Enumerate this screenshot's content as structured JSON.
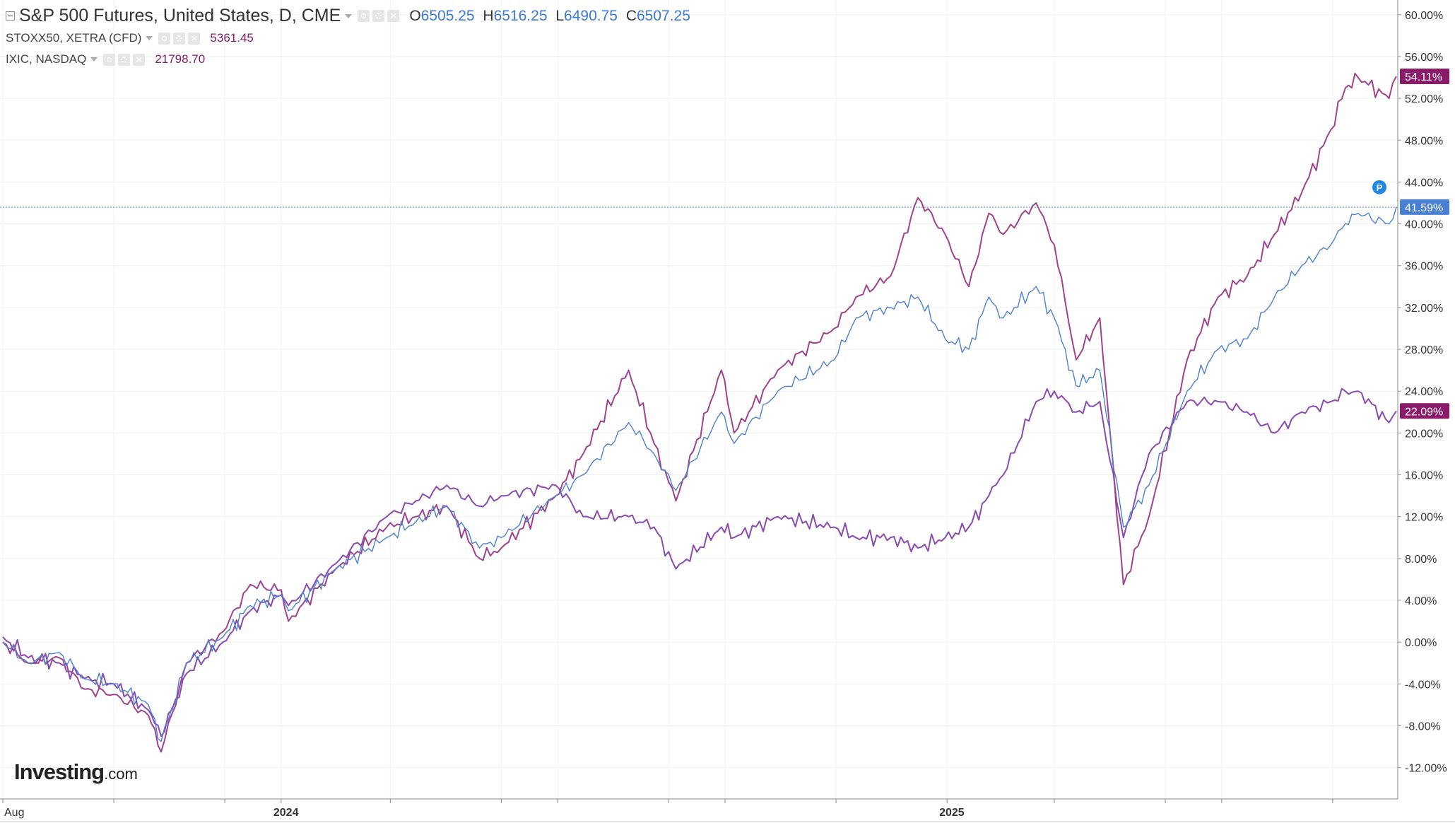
{
  "header": {
    "title": "S&P 500 Futures, United States, D, CME",
    "ohlc": [
      {
        "key": "O",
        "value": "6505.25"
      },
      {
        "key": "H",
        "value": "6516.25"
      },
      {
        "key": "L",
        "value": "6490.75"
      },
      {
        "key": "C",
        "value": "6507.25"
      }
    ]
  },
  "compare": [
    {
      "label": "STOXX50, XETRA (CFD)",
      "value": "5361.45",
      "color": "#8b1a6b"
    },
    {
      "label": "IXIC, NASDAQ",
      "value": "21798.70",
      "color": "#8b1a6b"
    }
  ],
  "logo": {
    "brand": "Investing",
    "suffix": ".com"
  },
  "colors": {
    "sp500": "#4a80d4",
    "ixic": "#a0438f",
    "stoxx": "#8a4ab0",
    "badge_purple": "#8b1a6b",
    "badge_blue": "#4a80d4"
  },
  "chart_data": {
    "type": "line",
    "yaxis_unit": "%",
    "ylim": [
      -15,
      61
    ],
    "yticks": [
      -12,
      -8,
      -4,
      0,
      4,
      8,
      12,
      16,
      20,
      24,
      28,
      32,
      36,
      40,
      44,
      48,
      52,
      56,
      60
    ],
    "ytick_labels": [
      "-12.00%",
      "-8.00%",
      "-4.00%",
      "0.00%",
      "4.00%",
      "8.00%",
      "12.00%",
      "16.00%",
      "20.00%",
      "24.00%",
      "28.00%",
      "32.00%",
      "36.00%",
      "40.00%",
      "44.00%",
      "48.00%",
      "52.00%",
      "56.00%",
      "60.00%"
    ],
    "xlim": [
      "2023-08-01",
      "2025-09-05"
    ],
    "xticks": [
      {
        "date": "2023-08-01",
        "label": "Aug"
      },
      {
        "date": "2024-01-01",
        "label": "2024"
      },
      {
        "date": "2025-01-01",
        "label": "2025"
      }
    ],
    "x_minor_ticks": [
      "2023-10-01",
      "2023-12-01",
      "2024-03-01",
      "2024-05-01",
      "2024-06-01",
      "2024-08-01",
      "2024-09-01",
      "2024-11-01",
      "2025-03-01",
      "2025-05-01",
      "2025-06-01",
      "2025-08-01"
    ],
    "series": [
      {
        "name": "IXIC, NASDAQ",
        "key": "ixic",
        "last_label": "54.11%",
        "points": [
          [
            "2023-08-01",
            0
          ],
          [
            "2023-08-15",
            -2
          ],
          [
            "2023-09-01",
            -1.5
          ],
          [
            "2023-09-15",
            -4.5
          ],
          [
            "2023-10-01",
            -5
          ],
          [
            "2023-10-20",
            -7
          ],
          [
            "2023-10-27",
            -10.5
          ],
          [
            "2023-11-10",
            -2
          ],
          [
            "2023-11-30",
            1
          ],
          [
            "2023-12-15",
            5.5
          ],
          [
            "2024-01-01",
            5
          ],
          [
            "2024-01-05",
            2
          ],
          [
            "2024-01-31",
            7
          ],
          [
            "2024-02-28",
            11
          ],
          [
            "2024-03-15",
            12
          ],
          [
            "2024-04-01",
            13
          ],
          [
            "2024-04-19",
            8
          ],
          [
            "2024-05-01",
            9
          ],
          [
            "2024-05-31",
            14
          ],
          [
            "2024-06-15",
            18
          ],
          [
            "2024-07-10",
            26
          ],
          [
            "2024-07-24",
            19
          ],
          [
            "2024-08-05",
            13.5
          ],
          [
            "2024-08-30",
            26
          ],
          [
            "2024-09-06",
            20
          ],
          [
            "2024-09-30",
            26
          ],
          [
            "2024-10-31",
            30
          ],
          [
            "2024-11-12",
            33
          ],
          [
            "2024-12-01",
            35
          ],
          [
            "2024-12-16",
            42.5
          ],
          [
            "2024-12-31",
            39
          ],
          [
            "2025-01-13",
            34
          ],
          [
            "2025-01-24",
            41
          ],
          [
            "2025-02-01",
            39
          ],
          [
            "2025-02-19",
            42
          ],
          [
            "2025-03-01",
            38
          ],
          [
            "2025-03-13",
            27
          ],
          [
            "2025-03-26",
            31
          ],
          [
            "2025-04-08",
            5.5
          ],
          [
            "2025-04-22",
            12
          ],
          [
            "2025-05-13",
            27
          ],
          [
            "2025-05-30",
            33
          ],
          [
            "2025-06-15",
            35
          ],
          [
            "2025-06-30",
            39
          ],
          [
            "2025-07-15",
            43
          ],
          [
            "2025-07-31",
            49
          ],
          [
            "2025-08-08",
            53
          ],
          [
            "2025-08-15",
            54
          ],
          [
            "2025-09-01",
            52
          ],
          [
            "2025-09-05",
            54.1
          ]
        ]
      },
      {
        "name": "S&P 500 Futures, United States, D, CME",
        "key": "sp500",
        "last_label": "41.59%",
        "points": [
          [
            "2023-08-01",
            0
          ],
          [
            "2023-08-15",
            -2
          ],
          [
            "2023-09-01",
            -1
          ],
          [
            "2023-09-15",
            -3.5
          ],
          [
            "2023-10-01",
            -4
          ],
          [
            "2023-10-20",
            -6
          ],
          [
            "2023-10-27",
            -9.5
          ],
          [
            "2023-11-10",
            -2
          ],
          [
            "2023-11-30",
            0.5
          ],
          [
            "2023-12-15",
            3.5
          ],
          [
            "2024-01-01",
            4.5
          ],
          [
            "2024-01-05",
            3
          ],
          [
            "2024-01-31",
            7
          ],
          [
            "2024-02-28",
            10
          ],
          [
            "2024-03-15",
            11.5
          ],
          [
            "2024-04-01",
            13
          ],
          [
            "2024-04-19",
            9
          ],
          [
            "2024-05-01",
            10
          ],
          [
            "2024-05-31",
            14
          ],
          [
            "2024-06-15",
            16
          ],
          [
            "2024-07-10",
            21
          ],
          [
            "2024-07-24",
            18
          ],
          [
            "2024-08-05",
            14.5
          ],
          [
            "2024-08-30",
            22
          ],
          [
            "2024-09-06",
            19
          ],
          [
            "2024-09-30",
            24
          ],
          [
            "2024-10-31",
            27
          ],
          [
            "2024-11-12",
            31
          ],
          [
            "2024-12-01",
            32
          ],
          [
            "2024-12-16",
            33
          ],
          [
            "2024-12-31",
            29
          ],
          [
            "2025-01-13",
            28
          ],
          [
            "2025-01-24",
            33
          ],
          [
            "2025-02-01",
            31
          ],
          [
            "2025-02-19",
            34
          ],
          [
            "2025-03-01",
            31
          ],
          [
            "2025-03-13",
            24.5
          ],
          [
            "2025-03-26",
            26
          ],
          [
            "2025-04-08",
            11
          ],
          [
            "2025-04-22",
            15
          ],
          [
            "2025-05-13",
            24
          ],
          [
            "2025-05-30",
            28
          ],
          [
            "2025-06-15",
            29
          ],
          [
            "2025-06-30",
            33
          ],
          [
            "2025-07-15",
            36
          ],
          [
            "2025-07-31",
            38
          ],
          [
            "2025-08-08",
            40
          ],
          [
            "2025-08-15",
            41
          ],
          [
            "2025-09-01",
            40
          ],
          [
            "2025-09-05",
            41.6
          ]
        ]
      },
      {
        "name": "STOXX50, XETRA (CFD)",
        "key": "stoxx",
        "last_label": "22.09%",
        "points": [
          [
            "2023-08-01",
            0.5
          ],
          [
            "2023-08-15",
            -1.5
          ],
          [
            "2023-09-01",
            -2
          ],
          [
            "2023-09-15",
            -3.5
          ],
          [
            "2023-10-01",
            -4
          ],
          [
            "2023-10-20",
            -6.5
          ],
          [
            "2023-10-27",
            -9
          ],
          [
            "2023-11-10",
            -3
          ],
          [
            "2023-11-30",
            0
          ],
          [
            "2023-12-15",
            3
          ],
          [
            "2024-01-01",
            4.5
          ],
          [
            "2024-01-05",
            3.5
          ],
          [
            "2024-01-31",
            7.5
          ],
          [
            "2024-02-28",
            12
          ],
          [
            "2024-03-15",
            13.5
          ],
          [
            "2024-04-01",
            15
          ],
          [
            "2024-04-19",
            13
          ],
          [
            "2024-05-01",
            14
          ],
          [
            "2024-05-31",
            15
          ],
          [
            "2024-06-15",
            12
          ],
          [
            "2024-07-10",
            12
          ],
          [
            "2024-07-24",
            11
          ],
          [
            "2024-08-05",
            7
          ],
          [
            "2024-08-30",
            11
          ],
          [
            "2024-09-06",
            10
          ],
          [
            "2024-09-30",
            12
          ],
          [
            "2024-10-31",
            11
          ],
          [
            "2024-11-12",
            10
          ],
          [
            "2024-12-01",
            10
          ],
          [
            "2024-12-16",
            9
          ],
          [
            "2024-12-31",
            10
          ],
          [
            "2025-01-13",
            11
          ],
          [
            "2025-01-24",
            14
          ],
          [
            "2025-02-01",
            16
          ],
          [
            "2025-02-19",
            23
          ],
          [
            "2025-03-01",
            24
          ],
          [
            "2025-03-13",
            22
          ],
          [
            "2025-03-26",
            23
          ],
          [
            "2025-04-08",
            10
          ],
          [
            "2025-04-22",
            18
          ],
          [
            "2025-05-13",
            23
          ],
          [
            "2025-05-30",
            23
          ],
          [
            "2025-06-15",
            22
          ],
          [
            "2025-06-30",
            20
          ],
          [
            "2025-07-15",
            22
          ],
          [
            "2025-07-31",
            23
          ],
          [
            "2025-08-08",
            24
          ],
          [
            "2025-08-15",
            24
          ],
          [
            "2025-09-01",
            21
          ],
          [
            "2025-09-05",
            22.1
          ]
        ]
      }
    ],
    "crosshair_y": 41.59,
    "marker": {
      "label": "P",
      "y": 43.5
    },
    "grid": true,
    "legend_position": "top-left"
  }
}
